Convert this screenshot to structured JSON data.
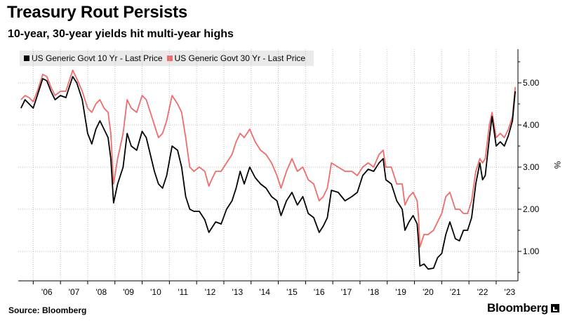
{
  "title": "Treasury Rout Persists",
  "subtitle": "10-year, 30-year yields hit multi-year highs",
  "source": "Source: Bloomberg",
  "brand": "Bloomberg",
  "chart_data": {
    "type": "line",
    "ylabel": "%",
    "ylim": [
      0.3,
      5.8
    ],
    "xlim": [
      2005.45,
      2023.8
    ],
    "grid": true,
    "legend_position": "top-left",
    "x_tick_labels": [
      "'06",
      "'07",
      "'08",
      "'09",
      "'10",
      "'11",
      "'12",
      "'13",
      "'14",
      "'15",
      "'16",
      "'17",
      "'18",
      "'19",
      "'20",
      "'21",
      "'22",
      "'23"
    ],
    "x_tick_positions": [
      2006,
      2007,
      2008,
      2009,
      2010,
      2011,
      2012,
      2013,
      2014,
      2015,
      2016,
      2017,
      2018,
      2019,
      2020,
      2021,
      2022,
      2023
    ],
    "y_ticks": [
      1.0,
      2.0,
      3.0,
      4.0,
      5.0
    ],
    "y_tick_labels": [
      "1.00",
      "2.00",
      "3.00",
      "4.00",
      "5.00"
    ],
    "series": [
      {
        "name": "US Generic Govt 10 Yr - Last Price",
        "color": "#000000",
        "x": [
          2005.55,
          2005.7,
          2005.85,
          2006.0,
          2006.15,
          2006.35,
          2006.5,
          2006.65,
          2006.8,
          2007.0,
          2007.2,
          2007.45,
          2007.6,
          2007.8,
          2008.0,
          2008.15,
          2008.3,
          2008.45,
          2008.6,
          2008.75,
          2008.85,
          2008.95,
          2009.1,
          2009.3,
          2009.45,
          2009.6,
          2009.8,
          2010.0,
          2010.15,
          2010.3,
          2010.45,
          2010.6,
          2010.75,
          2010.9,
          2011.1,
          2011.3,
          2011.45,
          2011.6,
          2011.75,
          2011.9,
          2012.1,
          2012.3,
          2012.45,
          2012.55,
          2012.7,
          2012.9,
          2013.1,
          2013.3,
          2013.45,
          2013.6,
          2013.75,
          2013.95,
          2014.15,
          2014.35,
          2014.55,
          2014.75,
          2014.95,
          2015.1,
          2015.3,
          2015.5,
          2015.7,
          2015.9,
          2016.1,
          2016.3,
          2016.5,
          2016.65,
          2016.8,
          2016.95,
          2017.2,
          2017.45,
          2017.7,
          2017.9,
          2018.1,
          2018.3,
          2018.5,
          2018.7,
          2018.85,
          2018.95,
          2019.15,
          2019.35,
          2019.55,
          2019.65,
          2019.8,
          2019.95,
          2020.1,
          2020.15,
          2020.2,
          2020.35,
          2020.5,
          2020.7,
          2020.85,
          2021.0,
          2021.15,
          2021.3,
          2021.5,
          2021.65,
          2021.8,
          2021.95,
          2022.1,
          2022.25,
          2022.4,
          2022.5,
          2022.6,
          2022.75,
          2022.85,
          2023.0,
          2023.15,
          2023.3,
          2023.45,
          2023.6,
          2023.7
        ],
        "y": [
          4.4,
          4.6,
          4.5,
          4.4,
          4.7,
          5.1,
          5.05,
          4.8,
          4.6,
          4.7,
          4.65,
          5.15,
          5.0,
          4.6,
          3.8,
          3.55,
          3.9,
          4.1,
          3.9,
          3.7,
          3.2,
          2.15,
          2.6,
          3.0,
          3.8,
          3.5,
          3.4,
          3.85,
          3.7,
          3.3,
          2.9,
          2.6,
          2.5,
          2.8,
          3.5,
          3.4,
          3.0,
          2.3,
          2.0,
          1.95,
          1.95,
          1.75,
          1.45,
          1.55,
          1.7,
          1.65,
          2.0,
          2.2,
          2.5,
          2.9,
          2.6,
          3.0,
          2.75,
          2.6,
          2.5,
          2.3,
          2.2,
          1.85,
          2.2,
          2.4,
          2.1,
          2.3,
          1.9,
          1.8,
          1.45,
          1.6,
          1.8,
          2.45,
          2.4,
          2.2,
          2.3,
          2.4,
          2.8,
          2.95,
          2.9,
          3.1,
          3.2,
          2.7,
          2.6,
          2.2,
          2.0,
          1.5,
          1.7,
          1.85,
          1.65,
          1.2,
          0.65,
          0.7,
          0.58,
          0.6,
          0.85,
          0.95,
          1.4,
          1.7,
          1.3,
          1.25,
          1.5,
          1.5,
          1.8,
          2.6,
          3.1,
          2.7,
          2.8,
          3.7,
          4.2,
          3.5,
          3.6,
          3.5,
          3.75,
          4.1,
          4.8
        ]
      },
      {
        "name": "US Generic Govt 30 Yr - Last Price",
        "color": "#f06b6b",
        "x": [
          2005.55,
          2005.7,
          2005.85,
          2006.0,
          2006.15,
          2006.35,
          2006.5,
          2006.65,
          2006.8,
          2007.0,
          2007.2,
          2007.45,
          2007.6,
          2007.8,
          2008.0,
          2008.15,
          2008.3,
          2008.45,
          2008.6,
          2008.75,
          2008.85,
          2008.95,
          2009.1,
          2009.3,
          2009.45,
          2009.6,
          2009.8,
          2010.0,
          2010.15,
          2010.3,
          2010.45,
          2010.6,
          2010.75,
          2010.9,
          2011.1,
          2011.3,
          2011.45,
          2011.6,
          2011.75,
          2011.9,
          2012.1,
          2012.3,
          2012.45,
          2012.55,
          2012.7,
          2012.9,
          2013.1,
          2013.3,
          2013.45,
          2013.6,
          2013.75,
          2013.95,
          2014.15,
          2014.35,
          2014.55,
          2014.75,
          2014.95,
          2015.1,
          2015.3,
          2015.5,
          2015.7,
          2015.9,
          2016.1,
          2016.3,
          2016.5,
          2016.65,
          2016.8,
          2016.95,
          2017.2,
          2017.45,
          2017.7,
          2017.9,
          2018.1,
          2018.3,
          2018.5,
          2018.7,
          2018.85,
          2018.95,
          2019.15,
          2019.35,
          2019.55,
          2019.65,
          2019.8,
          2019.95,
          2020.1,
          2020.15,
          2020.2,
          2020.35,
          2020.5,
          2020.7,
          2020.85,
          2021.0,
          2021.15,
          2021.3,
          2021.5,
          2021.65,
          2021.8,
          2021.95,
          2022.1,
          2022.25,
          2022.4,
          2022.5,
          2022.6,
          2022.75,
          2022.85,
          2023.0,
          2023.15,
          2023.3,
          2023.45,
          2023.6,
          2023.7
        ],
        "y": [
          4.6,
          4.7,
          4.65,
          4.55,
          4.8,
          5.2,
          5.15,
          4.9,
          4.7,
          4.8,
          4.8,
          5.3,
          5.1,
          4.8,
          4.4,
          4.3,
          4.5,
          4.6,
          4.4,
          4.3,
          3.8,
          2.6,
          3.2,
          3.8,
          4.6,
          4.4,
          4.3,
          4.7,
          4.6,
          4.3,
          4.0,
          3.7,
          3.8,
          4.1,
          4.7,
          4.5,
          4.3,
          3.7,
          3.0,
          2.9,
          3.0,
          2.9,
          2.55,
          2.7,
          2.9,
          2.9,
          3.1,
          3.3,
          3.6,
          3.8,
          3.7,
          3.9,
          3.6,
          3.4,
          3.3,
          3.1,
          2.8,
          2.5,
          2.9,
          3.2,
          2.9,
          3.0,
          2.7,
          2.6,
          2.2,
          2.3,
          2.5,
          3.1,
          3.0,
          2.9,
          2.9,
          2.8,
          3.0,
          3.1,
          3.0,
          3.3,
          3.4,
          3.0,
          3.0,
          2.6,
          2.6,
          2.1,
          2.3,
          2.4,
          2.2,
          1.8,
          1.1,
          1.4,
          1.4,
          1.5,
          1.7,
          1.9,
          2.3,
          2.4,
          2.0,
          2.0,
          1.9,
          1.9,
          2.2,
          2.9,
          3.2,
          3.1,
          3.2,
          4.0,
          4.3,
          3.7,
          3.8,
          3.7,
          3.9,
          4.2,
          4.9
        ]
      }
    ]
  }
}
